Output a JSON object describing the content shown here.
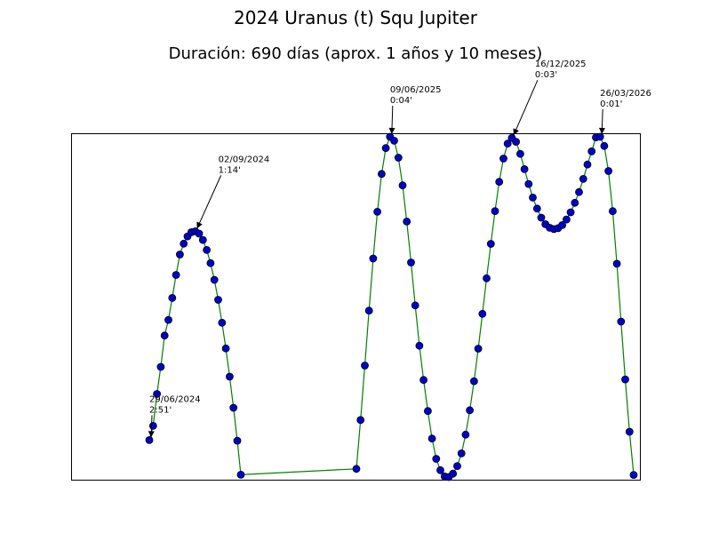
{
  "chart_data": {
    "type": "line",
    "title": "2024 Uranus (t) Squ Jupiter",
    "subtitle": "Duración: 690 días (aprox. 1 años y 10 meses)",
    "xlabel": "",
    "ylabel": "",
    "x_axis_ticks": "none",
    "y_axis_ticks": "none",
    "grid": false,
    "series": [
      {
        "line_color": "#008000",
        "marker_color": "#0000cc",
        "marker_edge": "#000000",
        "values": [
          23.9,
          33.1,
          53.7,
          71.2,
          91.5,
          101.6,
          115.8,
          130.7,
          143.9,
          150.9,
          155.6,
          158.3,
          158.9,
          157.4,
          153.3,
          146.8,
          138.3,
          127.5,
          114.6,
          99.8,
          83.2,
          64.9,
          44.8,
          23.5,
          1.5,
          5.3,
          36.9,
          72.1,
          107.6,
          141.3,
          171.5,
          196.0,
          212.7,
          220.0,
          217.5,
          206.5,
          188.6,
          165.2,
          138.7,
          111.0,
          84.9,
          62.8,
          42.7,
          24.9,
          11.8,
          4.4,
          0.4,
          0.0,
          2.2,
          7.1,
          15.3,
          27.4,
          43.2,
          62.0,
          83.0,
          105.5,
          128.5,
          150.8,
          172.0,
          190.9,
          205.9,
          215.6,
          219.3,
          216.8,
          209.0,
          199.1,
          189.5,
          180.7,
          173.6,
          167.7,
          163.5,
          161.2,
          160.3,
          160.9,
          162.9,
          166.5,
          171.2,
          177.3,
          184.3,
          192.8,
          202.1,
          210.6,
          219.6,
          220.0,
          214.1,
          197.9,
          171.9,
          137.9,
          100.5,
          63.1,
          29.3,
          1.4
        ]
      }
    ],
    "annotations": [
      {
        "label": "29/06/2024",
        "value": "2:51'",
        "index": 0
      },
      {
        "label": "02/09/2024",
        "value": "1:14'",
        "index": 12
      },
      {
        "label": "09/06/2025",
        "value": "0:04'",
        "index": 33
      },
      {
        "label": "16/12/2025",
        "value": "0:03'",
        "index": 62
      },
      {
        "label": "26/03/2026",
        "value": "0:01'",
        "index": 83
      }
    ]
  }
}
